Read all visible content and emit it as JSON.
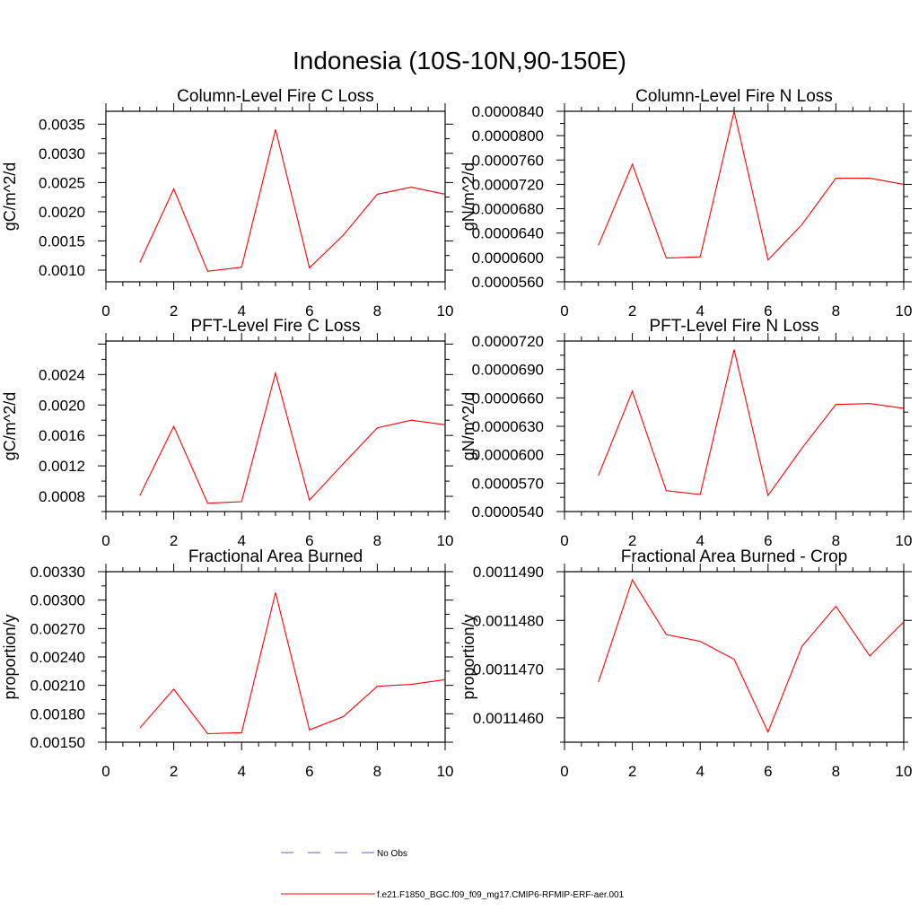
{
  "title": "Indonesia (10S-10N,90-150E)",
  "chart_data": [
    {
      "type": "line",
      "title": "Column-Level Fire C Loss",
      "xlabel": "",
      "ylabel": "gC/m^2/d",
      "xlim": [
        0,
        10
      ],
      "ylim": [
        0.0008,
        0.00372
      ],
      "xticks": [
        0,
        2,
        4,
        6,
        8,
        10
      ],
      "xtick_labels": [
        "0",
        "2",
        "4",
        "6",
        "8",
        "10"
      ],
      "yticks": [
        0.001,
        0.0015,
        0.002,
        0.0025,
        0.003,
        0.0035
      ],
      "ytick_labels": [
        "0.0010",
        "0.0015",
        "0.0020",
        "0.0025",
        "0.0030",
        "0.0035"
      ],
      "series": [
        {
          "name": "f.e21.F1850_BGC.f09_f09_mg17.CMIP6-RFMIP-ERF-aer.001",
          "color": "#ff0000",
          "x": [
            1,
            2,
            3,
            4,
            5,
            6,
            7,
            8,
            9,
            10
          ],
          "y": [
            0.00113,
            0.00239,
            0.00098,
            0.00105,
            0.00341,
            0.00104,
            0.0016,
            0.0023,
            0.00242,
            0.0023
          ]
        }
      ]
    },
    {
      "type": "line",
      "title": "Column-Level Fire N Loss",
      "xlabel": "",
      "ylabel": "gN/m^2/d",
      "xlim": [
        0,
        10
      ],
      "ylim": [
        5.6e-05,
        8.4e-05
      ],
      "xticks": [
        0,
        2,
        4,
        6,
        8,
        10
      ],
      "xtick_labels": [
        "0",
        "2",
        "4",
        "6",
        "8",
        "10"
      ],
      "yticks": [
        5.6e-05,
        6e-05,
        6.4e-05,
        6.8e-05,
        7.2e-05,
        7.6e-05,
        8e-05,
        8.4e-05
      ],
      "ytick_labels": [
        "0.0000560",
        "0.0000600",
        "0.0000640",
        "0.0000680",
        "0.0000720",
        "0.0000760",
        "0.0000800",
        "0.0000840"
      ],
      "series": [
        {
          "name": "f.e21.F1850_BGC.f09_f09_mg17.CMIP6-RFMIP-ERF-aer.001",
          "color": "#ff0000",
          "x": [
            1,
            2,
            3,
            4,
            5,
            6,
            7,
            8,
            9,
            10
          ],
          "y": [
            6.2e-05,
            7.53e-05,
            5.99e-05,
            6.01e-05,
            8.4e-05,
            5.96e-05,
            6.54e-05,
            7.3e-05,
            7.3e-05,
            7.2e-05
          ]
        }
      ]
    },
    {
      "type": "line",
      "title": "PFT-Level Fire C Loss",
      "xlabel": "",
      "ylabel": "gC/m^2/d",
      "xlim": [
        0,
        10
      ],
      "ylim": [
        0.0006,
        0.00284
      ],
      "xticks": [
        0,
        2,
        4,
        6,
        8,
        10
      ],
      "xtick_labels": [
        "0",
        "2",
        "4",
        "6",
        "8",
        "10"
      ],
      "yticks": [
        0.0008,
        0.0012,
        0.0016,
        0.002,
        0.0024
      ],
      "ytick_labels": [
        "0.0008",
        "0.0012",
        "0.0016",
        "0.0020",
        "0.0024"
      ],
      "series": [
        {
          "name": "f.e21.F1850_BGC.f09_f09_mg17.CMIP6-RFMIP-ERF-aer.001",
          "color": "#ff0000",
          "x": [
            1,
            2,
            3,
            4,
            5,
            6,
            7,
            8,
            9,
            10
          ],
          "y": [
            0.00081,
            0.00172,
            0.00071,
            0.00073,
            0.00242,
            0.00075,
            0.00123,
            0.0017,
            0.0018,
            0.00174
          ]
        }
      ]
    },
    {
      "type": "line",
      "title": "PFT-Level Fire N Loss",
      "xlabel": "",
      "ylabel": "gN/m^2/d",
      "xlim": [
        0,
        10
      ],
      "ylim": [
        5.4e-05,
        7.2e-05
      ],
      "xticks": [
        0,
        2,
        4,
        6,
        8,
        10
      ],
      "xtick_labels": [
        "0",
        "2",
        "4",
        "6",
        "8",
        "10"
      ],
      "yticks": [
        5.4e-05,
        5.7e-05,
        6e-05,
        6.3e-05,
        6.6e-05,
        6.9e-05,
        7.2e-05
      ],
      "ytick_labels": [
        "0.0000540",
        "0.0000570",
        "0.0000600",
        "0.0000630",
        "0.0000660",
        "0.0000690",
        "0.0000720"
      ],
      "series": [
        {
          "name": "f.e21.F1850_BGC.f09_f09_mg17.CMIP6-RFMIP-ERF-aer.001",
          "color": "#ff0000",
          "x": [
            1,
            2,
            3,
            4,
            5,
            6,
            7,
            8,
            9,
            10
          ],
          "y": [
            5.78e-05,
            6.67e-05,
            5.62e-05,
            5.58e-05,
            7.11e-05,
            5.57e-05,
            6.07e-05,
            6.53e-05,
            6.54e-05,
            6.49e-05
          ]
        }
      ]
    },
    {
      "type": "line",
      "title": "Fractional Area Burned",
      "xlabel": "",
      "ylabel": "proportion/y",
      "xlim": [
        0,
        10
      ],
      "ylim": [
        0.0015,
        0.0033
      ],
      "xticks": [
        0,
        2,
        4,
        6,
        8,
        10
      ],
      "xtick_labels": [
        "0",
        "2",
        "4",
        "6",
        "8",
        "10"
      ],
      "yticks": [
        0.0015,
        0.0018,
        0.0021,
        0.0024,
        0.0027,
        0.003,
        0.0033
      ],
      "ytick_labels": [
        "0.00150",
        "0.00180",
        "0.00210",
        "0.00240",
        "0.00270",
        "0.00300",
        "0.00330"
      ],
      "series": [
        {
          "name": "f.e21.F1850_BGC.f09_f09_mg17.CMIP6-RFMIP-ERF-aer.001",
          "color": "#ff0000",
          "x": [
            1,
            2,
            3,
            4,
            5,
            6,
            7,
            8,
            9,
            10
          ],
          "y": [
            0.00165,
            0.00206,
            0.00159,
            0.0016,
            0.00308,
            0.00163,
            0.00177,
            0.00209,
            0.00211,
            0.00216
          ]
        }
      ]
    },
    {
      "type": "line",
      "title": "Fractional Area Burned - Crop",
      "xlabel": "",
      "ylabel": "proportion/y",
      "xlim": [
        0,
        10
      ],
      "ylim": [
        0.0011455,
        0.001149
      ],
      "xticks": [
        0,
        2,
        4,
        6,
        8,
        10
      ],
      "xtick_labels": [
        "0",
        "2",
        "4",
        "6",
        "8",
        "10"
      ],
      "yticks": [
        0.001146,
        0.001147,
        0.001148,
        0.001149
      ],
      "ytick_labels": [
        "0.0011460",
        "0.0011470",
        "0.0011480",
        "0.0011490"
      ],
      "series": [
        {
          "name": "f.e21.F1850_BGC.f09_f09_mg17.CMIP6-RFMIP-ERF-aer.001",
          "color": "#ff0000",
          "x": [
            1,
            2,
            3,
            4,
            5,
            6,
            7,
            8,
            9,
            10
          ],
          "y": [
            0.00114673,
            0.00114883,
            0.00114771,
            0.00114757,
            0.0011472,
            0.00114571,
            0.00114747,
            0.00114829,
            0.00114727,
            0.00114797
          ]
        }
      ]
    }
  ],
  "legend": {
    "items": [
      {
        "label": "No Obs",
        "color": "#6060c0",
        "style": "dashed"
      },
      {
        "label": "f.e21.F1850_BGC.f09_f09_mg17.CMIP6-RFMIP-ERF-aer.001",
        "color": "#ff0000",
        "style": "solid"
      }
    ]
  }
}
